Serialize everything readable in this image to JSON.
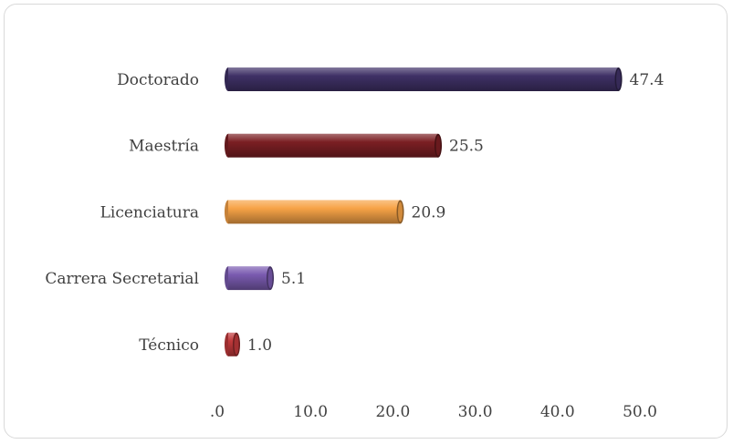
{
  "chart_data": {
    "type": "bar",
    "orientation": "horizontal",
    "categories": [
      "Doctorado",
      "Maestría",
      "Licenciatura",
      "Carrera Secretarial",
      "Técnico"
    ],
    "values": [
      47.4,
      25.5,
      20.9,
      5.1,
      1.0
    ],
    "value_labels": [
      "47.4",
      "25.5",
      "20.9",
      "5.1",
      "1.0"
    ],
    "bar_colors": [
      "#3f3166",
      "#7b1f23",
      "#f7a347",
      "#7a5bb0",
      "#c0393b"
    ],
    "xlim": [
      0,
      50
    ],
    "xticks": [
      ".0",
      "10.0",
      "20.0",
      "30.0",
      "40.0",
      "50.0"
    ],
    "title": "",
    "xlabel": "",
    "ylabel": "",
    "grid": false,
    "legend": "none"
  }
}
